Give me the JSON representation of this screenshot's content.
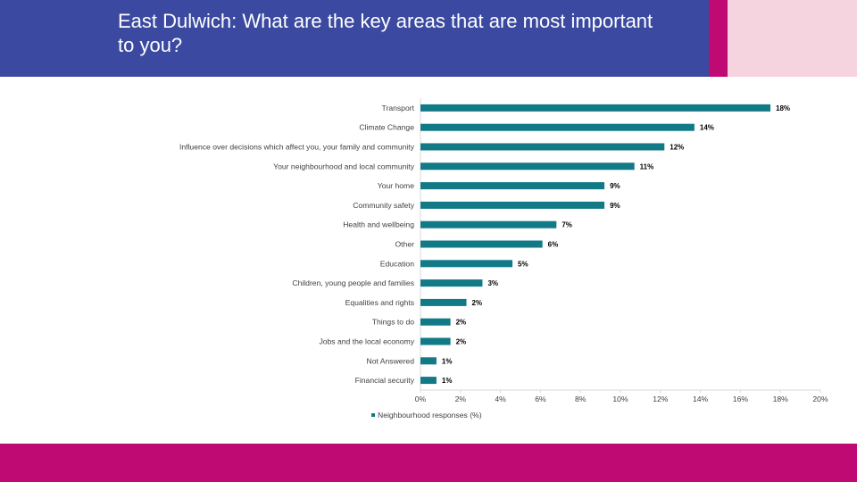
{
  "slide": {
    "title": "East Dulwich: What are the key areas that are most important to you?",
    "colors": {
      "header": "#3b4aa0",
      "accent": "#c00a73",
      "accent_light": "#f5d3df",
      "bar": "#127a87"
    }
  },
  "chart_data": {
    "type": "bar",
    "orientation": "horizontal",
    "categories": [
      "Transport",
      "Climate Change",
      "Influence over decisions which affect you, your family and community",
      "Your neighbourhood and local community",
      "Your home",
      "Community safety",
      "Health and wellbeing",
      "Other",
      "Education",
      "Children, young people and families",
      "Equalities and rights",
      "Things to do",
      "Jobs and the local economy",
      "Not Answered",
      "Financial security"
    ],
    "series": [
      {
        "name": "Neighbourhood responses (%)",
        "values": [
          17.5,
          13.7,
          12.2,
          10.7,
          9.2,
          9.2,
          6.8,
          6.1,
          4.6,
          3.1,
          2.3,
          1.5,
          1.5,
          0.8,
          0.8
        ],
        "labels": [
          "18%",
          "14%",
          "12%",
          "11%",
          "9%",
          "9%",
          "7%",
          "6%",
          "5%",
          "3%",
          "2%",
          "2%",
          "2%",
          "1%",
          "1%"
        ]
      }
    ],
    "xlim": [
      0,
      20
    ],
    "xticks": [
      "0%",
      "2%",
      "4%",
      "6%",
      "8%",
      "10%",
      "12%",
      "14%",
      "16%",
      "18%",
      "20%"
    ],
    "grid": false,
    "legend": "bottom-left"
  }
}
